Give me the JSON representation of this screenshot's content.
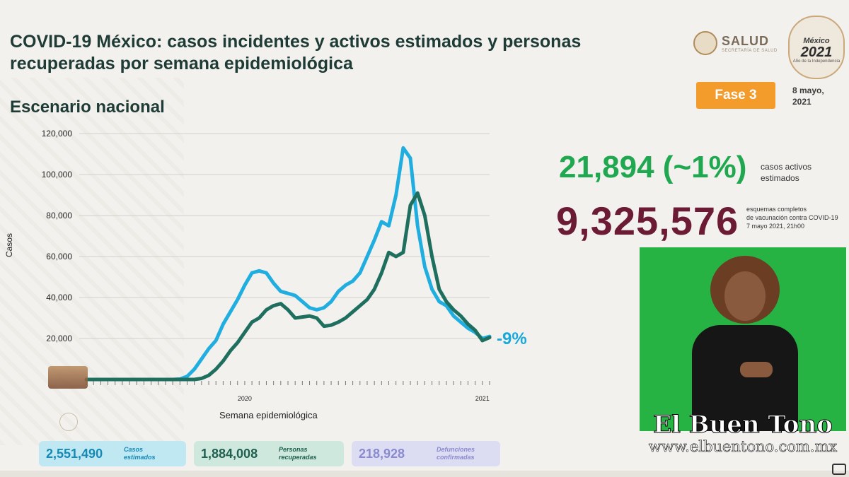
{
  "header": {
    "title": "COVID-19 México: casos incidentes y activos estimados y personas recuperadas por semana epidemiológica",
    "subtitle": "Escenario nacional"
  },
  "logos": {
    "salud": "SALUD",
    "salud_sub": "SECRETARÍA DE SALUD",
    "year_logo_top": "México",
    "year_logo_year": "2021",
    "year_logo_sub": "Año de la Independencia"
  },
  "status": {
    "phase": "Fase 3",
    "date_line1": "8 mayo,",
    "date_line2": "2021"
  },
  "metrics": {
    "active_value": "21,894 (~1%)",
    "active_label_1": "casos activos",
    "active_label_2": "estimados",
    "vacc_value": "9,325,576",
    "vacc_label_1": "esquemas completos",
    "vacc_label_2": "de vacunación contra COVID-19",
    "vacc_label_3": "7 mayo 2021, 21h00"
  },
  "summary_cards": [
    {
      "value": "2,551,490",
      "label_1": "Casos",
      "label_2": "estimados",
      "color": "#1689b5"
    },
    {
      "value": "1,884,008",
      "label_1": "Personas",
      "label_2": "recuperadas",
      "color": "#1f5f4f"
    },
    {
      "value": "218,928",
      "label_1": "Defunciones",
      "label_2": "confirmadas",
      "color": "#8a8ad0"
    }
  ],
  "watermark": {
    "name": "El Buen Tono",
    "url": "www.elbuentono.com.mx"
  },
  "chart_data": {
    "type": "line",
    "xlabel": "Semana epidemiológica",
    "ylabel": "Casos",
    "ylim": [
      0,
      120000
    ],
    "yticks": [
      20000,
      40000,
      60000,
      80000,
      100000,
      120000
    ],
    "ytick_labels": [
      "20,000",
      "40,000",
      "60,000",
      "80,000",
      "100,000",
      "120,000"
    ],
    "x_year_labels": [
      {
        "label": "2020",
        "index": 22
      },
      {
        "label": "2021",
        "index": 55
      }
    ],
    "annotation": "-9%",
    "grid": true,
    "series": [
      {
        "color": "#20aee0",
        "values": [
          0,
          0,
          0,
          0,
          0,
          0,
          0,
          0,
          0,
          0,
          0,
          0,
          0,
          200,
          1500,
          5000,
          10000,
          15000,
          19000,
          27000,
          33000,
          39000,
          46000,
          52000,
          53000,
          52000,
          47000,
          43000,
          42000,
          41000,
          38000,
          35000,
          34000,
          35000,
          38000,
          43000,
          46000,
          48000,
          52000,
          60000,
          68000,
          77000,
          75000,
          90000,
          113000,
          108000,
          75000,
          55000,
          44000,
          38000,
          36000,
          31000,
          28000,
          25000,
          23000,
          20000,
          21000
        ]
      },
      {
        "color": "#1f6f5f",
        "values": [
          0,
          0,
          0,
          0,
          0,
          0,
          0,
          0,
          0,
          0,
          0,
          0,
          0,
          0,
          0,
          0,
          500,
          2000,
          5000,
          9000,
          14000,
          18000,
          23000,
          28000,
          30000,
          34000,
          36000,
          37000,
          34000,
          30000,
          30500,
          31000,
          30000,
          26000,
          26500,
          28000,
          30000,
          33000,
          36000,
          39000,
          44000,
          52000,
          62000,
          60000,
          62000,
          85000,
          91000,
          80000,
          60000,
          44000,
          38000,
          34000,
          31000,
          27000,
          24000,
          19000,
          20500
        ]
      }
    ]
  }
}
